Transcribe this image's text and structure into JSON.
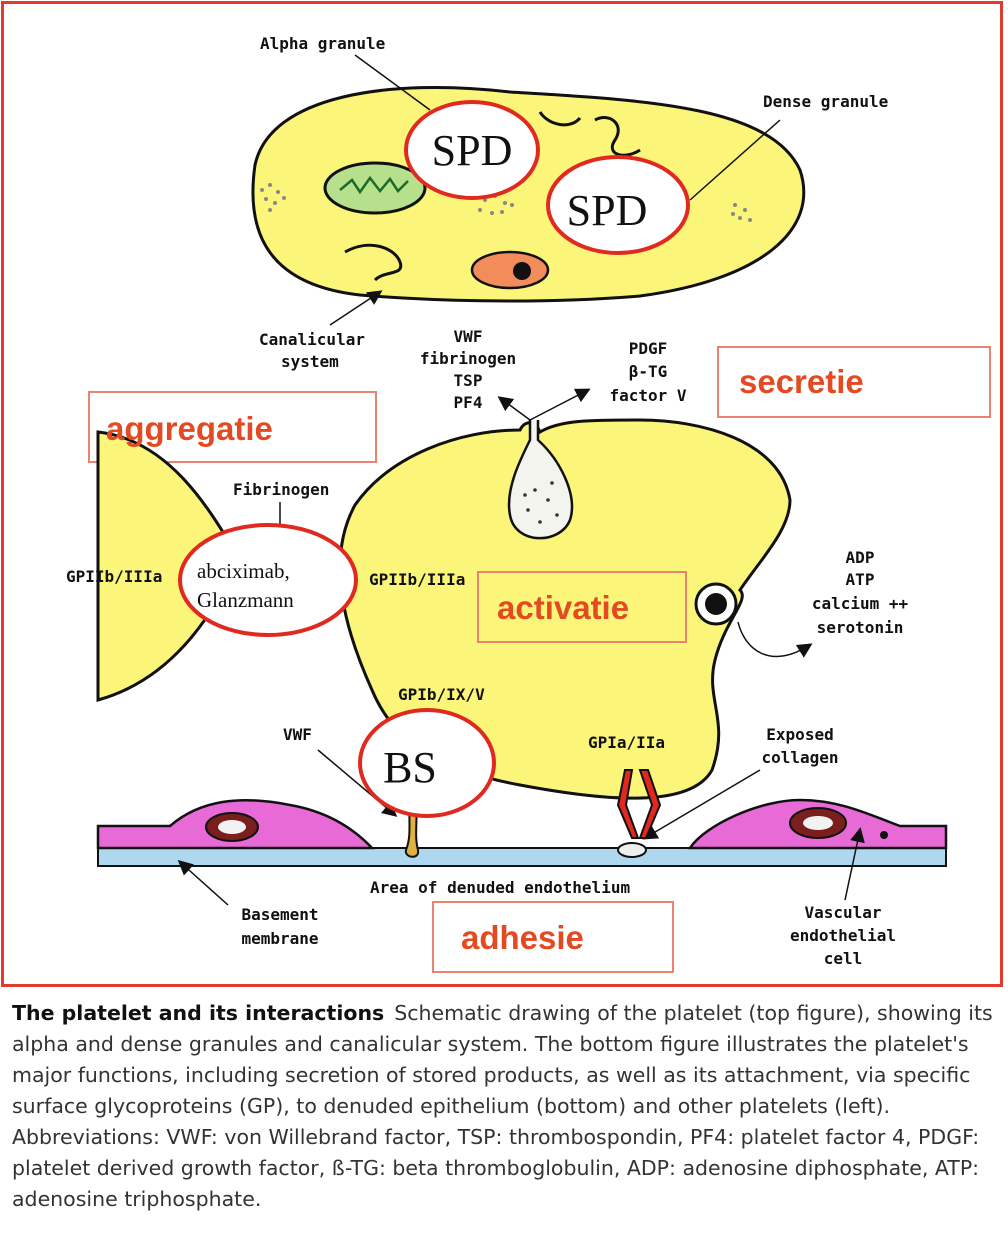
{
  "labels": {
    "alpha_granule": "Alpha granule",
    "dense_granule": "Dense granule",
    "canalicular_1": "Canalicular",
    "canalicular_2": "system",
    "vwf_group": [
      "VWF",
      "fibrinogen",
      "TSP",
      "PF4"
    ],
    "pdgf_group": [
      "PDGF",
      "β-TG",
      "factor V"
    ],
    "fibrinogen": "Fibrinogen",
    "gp2b3a_left": "GPIIb/IIIa",
    "gp2b3a_right": "GPIIb/IIIa",
    "adp_group": [
      "ADP",
      "ATP",
      "calcium ++",
      "serotonin"
    ],
    "gp1b": "GPIb/IX/V",
    "vwf_bottom": "VWF",
    "gp1a": "GPIa/IIa",
    "exposed_collagen": [
      "Exposed",
      "collagen"
    ],
    "denuded": "Area of denuded endothelium",
    "basement": [
      "Basement",
      "membrane"
    ],
    "vascular": [
      "Vascular",
      "endothelial",
      "cell"
    ]
  },
  "annotations": {
    "spd_1": "SPD",
    "spd_2": "SPD",
    "drug": [
      "abciximab,",
      "Glanzmann"
    ],
    "bs": "BS"
  },
  "tags": {
    "secretie": "secretie",
    "aggregatie": "aggregatie",
    "activatie": "activatie",
    "adhesie": "adhesie"
  },
  "caption": {
    "title": "The platelet and its interactions",
    "text": "Schematic drawing of the platelet (top figure), showing its alpha and dense granules and canalicular system. The bottom figure illustrates the platelet's major functions, including secretion of stored products, as well as its attachment, via specific surface glycoproteins (GP), to denuded epithelium (bottom) and other platelets (left). Abbreviations: VWF: von Willebrand factor, TSP: thrombospondin, PF4: platelet factor 4, PDGF: platelet derived growth factor, ß-TG: beta thromboglobulin, ADP: adenosine diphosphate, ATP: adenosine triphosphate."
  },
  "colors": {
    "frame": "#e33a2e",
    "platelet": "#fbf57a",
    "endothelial_cell": "#e86ad6",
    "tag_text": "#e34a22",
    "annotation_ring": "#e02a20"
  }
}
